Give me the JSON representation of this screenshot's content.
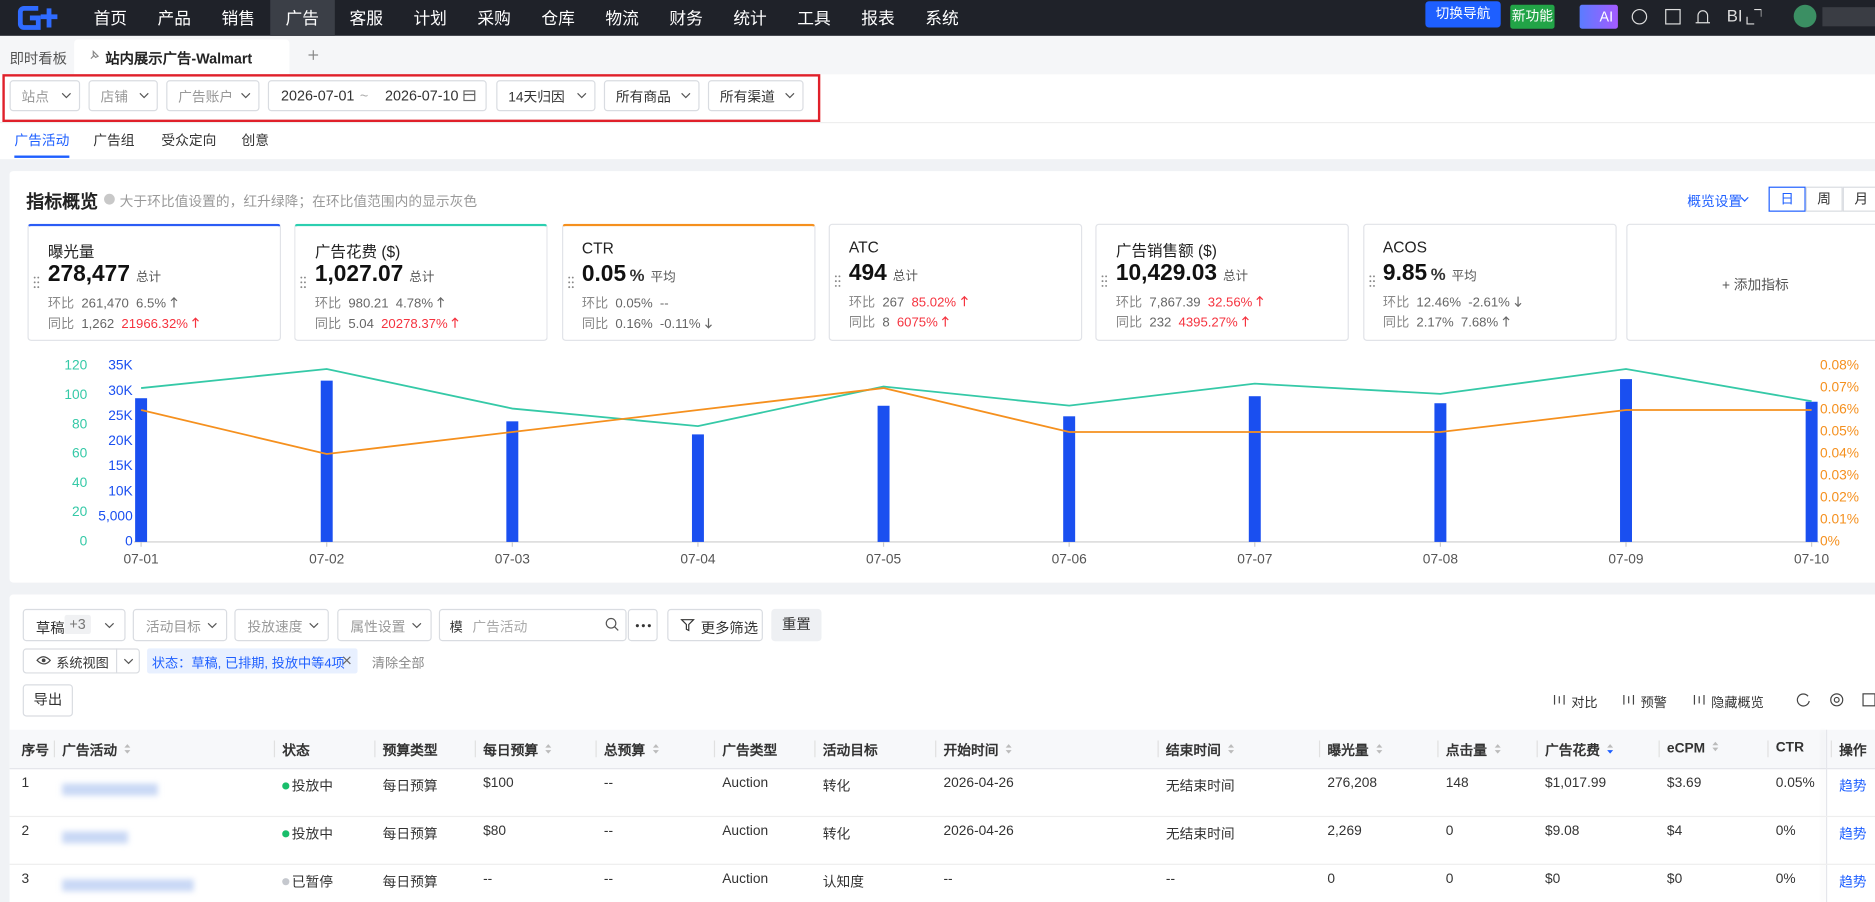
{
  "nav": {
    "items": [
      "首页",
      "产品",
      "销售",
      "广告",
      "客服",
      "计划",
      "采购",
      "仓库",
      "物流",
      "财务",
      "统计",
      "工具",
      "报表",
      "系统"
    ],
    "active": 3,
    "switch": "切换导航",
    "new": "新功能",
    "ai": "AI",
    "bi": "BI"
  },
  "tabs": {
    "board": "即时看板",
    "current": "站内展示广告-Walmart"
  },
  "filters": {
    "left": [
      "站点",
      "店铺",
      "广告账户"
    ],
    "date_start": "2026-07-01",
    "date_sep": "~",
    "date_end": "2026-07-10",
    "right": [
      "14天归因",
      "所有商品",
      "所有渠道"
    ]
  },
  "subtabs": {
    "items": [
      "广告活动",
      "广告组",
      "受众定向",
      "创意"
    ],
    "active": 0
  },
  "overview": {
    "title": "指标概览",
    "hint": "大于环比值设置的，红升绿降；在环比值范围内的显示灰色",
    "settings": "概览设置",
    "periods": [
      "日",
      "周",
      "月"
    ],
    "active_period": 0,
    "mom_label": "环比",
    "yoy_label": "同比",
    "add": "+ 添加指标",
    "cards": [
      {
        "title": "曝光量",
        "value": "278,477",
        "agg": "总计",
        "accent": "#2b5cf5",
        "mom": {
          "value": "261,470",
          "pct": "6.5%",
          "trend": "up",
          "red": false
        },
        "yoy": {
          "value": "1,262",
          "pct": "21966.32%",
          "trend": "up",
          "red": true
        }
      },
      {
        "title": "广告花费 ($)",
        "value": "1,027.07",
        "agg": "总计",
        "accent": "#2ccfb0",
        "mom": {
          "value": "980.21",
          "pct": "4.78%",
          "trend": "up",
          "red": false
        },
        "yoy": {
          "value": "5.04",
          "pct": "20278.37%",
          "trend": "up",
          "red": true
        }
      },
      {
        "title": "CTR",
        "value": "0.05",
        "unit": "%",
        "agg": "平均",
        "accent": "#f5901e",
        "mom": {
          "value": "0.05%",
          "pct": "--",
          "red": false
        },
        "yoy": {
          "value": "0.16%",
          "pct": "-0.11%",
          "trend": "down",
          "red": false
        }
      },
      {
        "title": "ATC",
        "value": "494",
        "agg": "总计",
        "mom": {
          "value": "267",
          "pct": "85.02%",
          "trend": "up",
          "red": true
        },
        "yoy": {
          "value": "8",
          "pct": "6075%",
          "trend": "up",
          "red": true
        }
      },
      {
        "title": "广告销售额 ($)",
        "value": "10,429.03",
        "agg": "总计",
        "mom": {
          "value": "7,867.39",
          "pct": "32.56%",
          "trend": "up",
          "red": true
        },
        "yoy": {
          "value": "232",
          "pct": "4395.27%",
          "trend": "up",
          "red": true
        }
      },
      {
        "title": "ACOS",
        "value": "9.85",
        "unit": "%",
        "agg": "平均",
        "mom": {
          "value": "12.46%",
          "pct": "-2.61%",
          "trend": "down",
          "red": false
        },
        "yoy": {
          "value": "2.17%",
          "pct": "7.68%",
          "trend": "up",
          "red": false
        }
      }
    ]
  },
  "chart_data": {
    "type": "bar",
    "categories": [
      "07-01",
      "07-02",
      "07-03",
      "07-04",
      "07-05",
      "07-06",
      "07-07",
      "07-08",
      "07-09",
      "07-10"
    ],
    "ylim": [
      0,
      35000
    ],
    "yticks": [
      0,
      {
        "value": 5000,
        "label": "5,000"
      },
      {
        "value": 10000,
        "label": "10K"
      },
      {
        "value": 15000,
        "label": "15K"
      },
      {
        "value": 20000,
        "label": "20K"
      },
      {
        "value": 25000,
        "label": "25K"
      },
      {
        "value": 30000,
        "label": "30K"
      },
      {
        "value": 35000,
        "label": "35K"
      }
    ],
    "y3lim": [
      0,
      120
    ],
    "y3ticks": [
      0,
      20,
      40,
      60,
      80,
      100,
      120
    ],
    "y2lim": [
      0,
      0.08
    ],
    "y2ticks": [
      {
        "value": 0,
        "label": "0%"
      },
      {
        "value": 0.01,
        "label": "0.01%"
      },
      {
        "value": 0.02,
        "label": "0.02%"
      },
      {
        "value": 0.03,
        "label": "0.03%"
      },
      {
        "value": 0.04,
        "label": "0.04%"
      },
      {
        "value": 0.05,
        "label": "0.05%"
      },
      {
        "value": 0.06,
        "label": "0.06%"
      },
      {
        "value": 0.07,
        "label": "0.07%"
      },
      {
        "value": 0.08,
        "label": "0.08%"
      }
    ],
    "series": [
      {
        "type": "bar",
        "color": "#1a4ff0",
        "values": [
          28600,
          32100,
          24000,
          21400,
          27100,
          25000,
          29000,
          27600,
          32400,
          27900
        ]
      },
      {
        "type": "line",
        "axis": "y3",
        "color": "#35c9a7",
        "values": [
          105,
          118,
          91,
          79,
          106,
          93,
          108,
          101,
          118,
          96
        ]
      },
      {
        "type": "line",
        "axis": "y2",
        "color": "#f5901e",
        "values": [
          0.06,
          0.04,
          0.05,
          0.06,
          0.07,
          0.05,
          0.05,
          0.05,
          0.06,
          0.06
        ]
      }
    ]
  },
  "toolbar": {
    "draft": "草稿",
    "draft_more": "+3",
    "selects": [
      "活动目标",
      "投放速度",
      "属性设置"
    ],
    "search_prefix": "模",
    "search_placeholder": "广告活动",
    "more_filters": "更多筛选",
    "reset": "重置",
    "view": "系统视图",
    "chip": "状态：草稿, 已排期, 投放中等4项",
    "clear": "清除全部",
    "export": "导出",
    "tools": [
      "对比",
      "预警",
      "隐藏概览"
    ]
  },
  "table": {
    "headers": [
      "序号",
      "广告活动",
      "状态",
      "预算类型",
      "每日预算",
      "总预算",
      "广告类型",
      "活动目标",
      "开始时间",
      "结束时间",
      "曝光量",
      "点击量",
      "广告花费",
      "eCPM",
      "CTR",
      "操作"
    ],
    "sortable": [
      false,
      true,
      false,
      false,
      true,
      true,
      false,
      false,
      true,
      true,
      true,
      true,
      true,
      true,
      false,
      false
    ],
    "rows": [
      {
        "dot": "#19be6b",
        "cells": [
          "1",
          "",
          "投放中",
          "每日预算",
          "$100",
          "--",
          "Auction",
          "转化",
          "2026-04-26",
          "无结束时间",
          "276,208",
          "148",
          "$1,017.99",
          "$3.69",
          "0.05%",
          "趋势"
        ]
      },
      {
        "dot": "#19be6b",
        "cells": [
          "2",
          "",
          "投放中",
          "每日预算",
          "$80",
          "--",
          "Auction",
          "转化",
          "2026-04-26",
          "无结束时间",
          "2,269",
          "0",
          "$9.08",
          "$4",
          "0%",
          "趋势"
        ]
      },
      {
        "dot": "#c5c8ce",
        "cells": [
          "3",
          "",
          "已暂停",
          "每日预算",
          "--",
          "--",
          "Auction",
          "认知度",
          "--",
          "--",
          "0",
          "0",
          "$0",
          "$0",
          "0%",
          "趋势"
        ]
      }
    ]
  }
}
